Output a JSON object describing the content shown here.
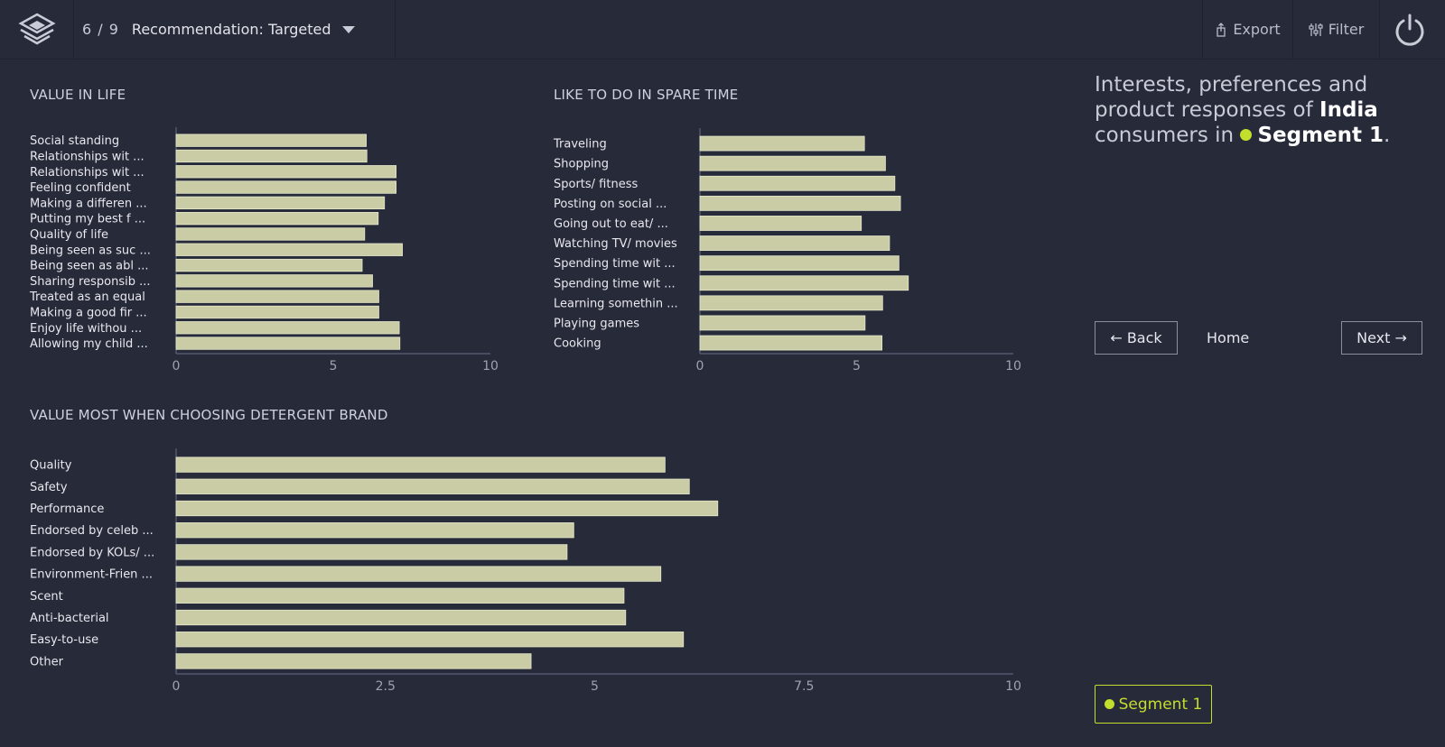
{
  "header": {
    "counter": "6 / 9",
    "title": "Recommendation: Targeted",
    "export_label": "Export",
    "filter_label": "Filter"
  },
  "sidebar": {
    "headline_part1": "Interests, preferences and product responses of ",
    "headline_country": "India",
    "headline_part2": " consumers in ",
    "headline_segment": "Segment 1",
    "headline_end": ".",
    "back_label": "← Back",
    "home_label": "Home",
    "next_label": "Next →",
    "segment_badge": "Segment 1"
  },
  "colors": {
    "background": "#272a39",
    "bar": "#c9cca4",
    "accent": "#c3de2d"
  },
  "chart_data": [
    {
      "type": "bar",
      "orientation": "horizontal",
      "title": "VALUE IN LIFE",
      "xlim": [
        0,
        10
      ],
      "xticks": [
        "0",
        "5",
        "10"
      ],
      "categories": [
        "Social standing",
        "Relationships wit ...",
        "Relationships wit ...",
        "Feeling confident",
        "Making a differen ...",
        "Putting my best f ...",
        "Quality of life",
        "Being seen as suc ...",
        "Being seen as abl ...",
        "Sharing responsib ...",
        "Treated as an equal",
        "Making a good fir ...",
        "Enjoy life withou ...",
        "Allowing my child ..."
      ],
      "values": [
        6.05,
        6.07,
        7.0,
        7.0,
        6.63,
        6.43,
        6.0,
        7.2,
        5.92,
        6.25,
        6.45,
        6.45,
        7.1,
        7.12
      ]
    },
    {
      "type": "bar",
      "orientation": "horizontal",
      "title": "LIKE TO DO IN SPARE TIME",
      "xlim": [
        0,
        10
      ],
      "xticks": [
        "0",
        "5",
        "10"
      ],
      "categories": [
        "Traveling",
        "Shopping",
        "Sports/ fitness",
        "Posting on social ...",
        "Going out to eat/ ...",
        "Watching TV/ movies",
        "Spending time wit ...",
        "Spending time wit ...",
        "Learning somethin ...",
        "Playing games",
        "Cooking"
      ],
      "values": [
        5.25,
        5.92,
        6.22,
        6.4,
        5.15,
        6.05,
        6.35,
        6.65,
        5.83,
        5.27,
        5.81
      ]
    },
    {
      "type": "bar",
      "orientation": "horizontal",
      "title": "VALUE MOST WHEN CHOOSING DETERGENT BRAND",
      "xlim": [
        0,
        10
      ],
      "xticks": [
        "0",
        "2.5",
        "5",
        "7.5",
        "10"
      ],
      "categories": [
        "Quality",
        "Safety",
        "Performance",
        "Endorsed by celeb ...",
        "Endorsed by KOLs/ ...",
        "Environment-Frien ...",
        "Scent",
        "Anti-bacterial",
        "Easy-to-use",
        "Other"
      ],
      "values": [
        5.84,
        6.13,
        6.47,
        4.75,
        4.67,
        5.79,
        5.35,
        5.37,
        6.06,
        4.24
      ]
    }
  ]
}
